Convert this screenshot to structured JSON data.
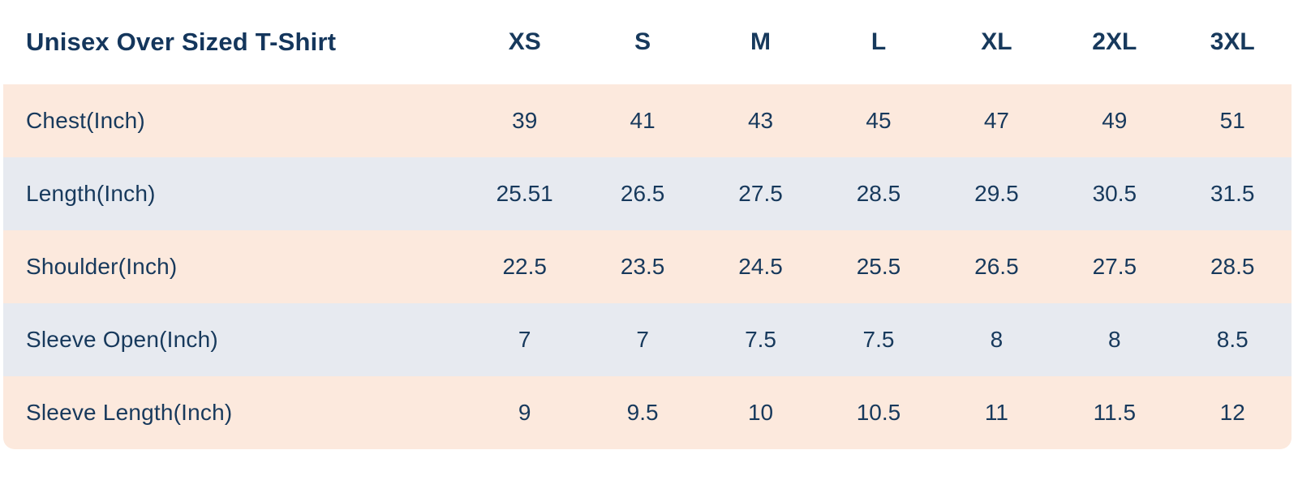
{
  "colors": {
    "row_peach": "#fce9dd",
    "row_blue": "#e7eaf0",
    "text_navy": "#17395c",
    "background": "#ffffff"
  },
  "chart_data": {
    "type": "table",
    "title": "Unisex Over Sized T-Shirt",
    "columns": [
      "XS",
      "S",
      "M",
      "L",
      "XL",
      "2XL",
      "3XL"
    ],
    "rows": [
      {
        "label": "Chest(Inch)",
        "values": [
          "39",
          "41",
          "43",
          "45",
          "47",
          "49",
          "51"
        ]
      },
      {
        "label": "Length(Inch)",
        "values": [
          "25.51",
          "26.5",
          "27.5",
          "28.5",
          "29.5",
          "30.5",
          "31.5"
        ]
      },
      {
        "label": "Shoulder(Inch)",
        "values": [
          "22.5",
          "23.5",
          "24.5",
          "25.5",
          "26.5",
          "27.5",
          "28.5"
        ]
      },
      {
        "label": "Sleeve Open(Inch)",
        "values": [
          "7",
          "7",
          "7.5",
          "7.5",
          "8",
          "8",
          "8.5"
        ]
      },
      {
        "label": "Sleeve Length(Inch)",
        "values": [
          "9",
          "9.5",
          "10",
          "10.5",
          "11",
          "11.5",
          "12"
        ]
      }
    ],
    "row_striping": [
      "peach",
      "blue",
      "peach",
      "blue",
      "peach"
    ],
    "layout": {
      "legend": "none",
      "grid": "off"
    }
  }
}
